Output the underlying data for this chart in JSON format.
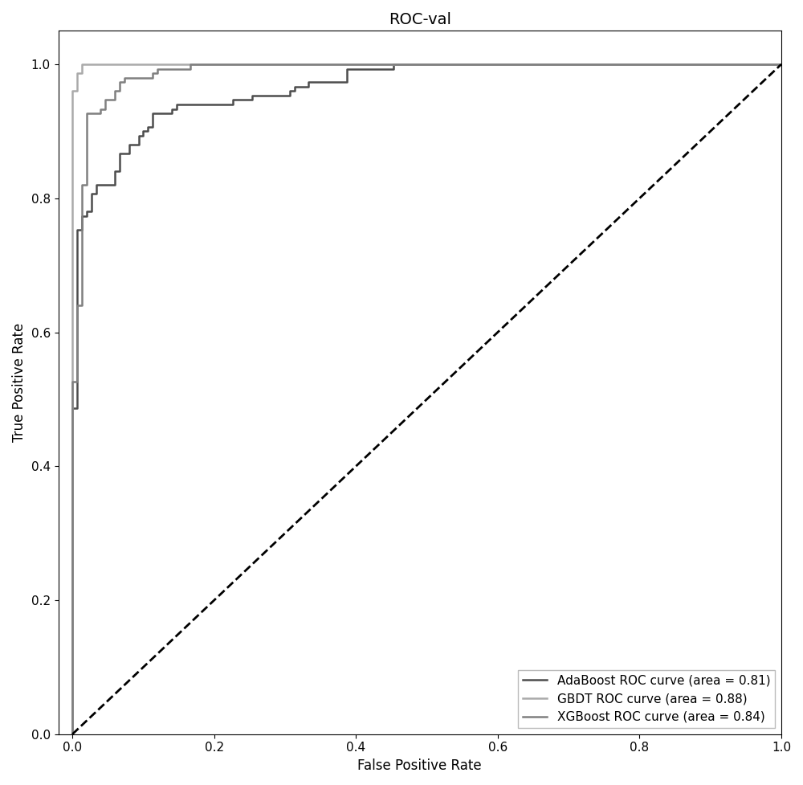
{
  "title": "ROC-val",
  "xlabel": "False Positive Rate",
  "ylabel": "True Positive Rate",
  "xlim": [
    -0.02,
    1.0
  ],
  "ylim": [
    0.0,
    1.05
  ],
  "legend_labels": [
    "AdaBoost ROC curve (area = 0.81)",
    "GBDT ROC curve (area = 0.88)",
    "XGBoost ROC curve (area = 0.84)"
  ],
  "curve_colors": [
    "#4d4d4d",
    "#aaaaaa",
    "#808080"
  ],
  "curve_linewidths": [
    1.8,
    1.8,
    1.8
  ],
  "diagonal_color": "black",
  "diagonal_linestyle": "--",
  "diagonal_linewidth": 2.0,
  "background_color": "#ffffff",
  "auc_ada": 0.81,
  "auc_gbdt": 0.88,
  "auc_xgb": 0.84,
  "title_fontsize": 14,
  "axis_label_fontsize": 12,
  "tick_fontsize": 11,
  "legend_fontsize": 11,
  "legend_loc": "lower right",
  "xticks": [
    0.0,
    0.2,
    0.4,
    0.6,
    0.8,
    1.0
  ],
  "yticks": [
    0.0,
    0.2,
    0.4,
    0.6,
    0.8,
    1.0
  ]
}
